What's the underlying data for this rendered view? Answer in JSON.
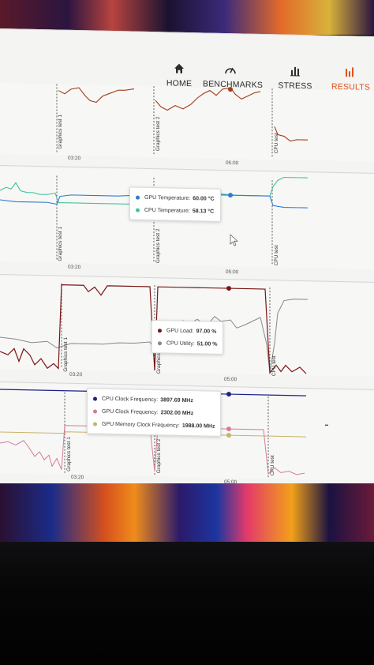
{
  "nav": {
    "items": [
      {
        "label": "HOME",
        "icon": "home-icon",
        "active": false
      },
      {
        "label": "BENCHMARKS",
        "icon": "gauge-icon",
        "active": false
      },
      {
        "label": "STRESS TESTS",
        "icon": "bars-icon",
        "active": false
      },
      {
        "label": "RESULTS",
        "icon": "results-icon",
        "active": true
      }
    ],
    "active_color": "#e0531f"
  },
  "segments": {
    "graphics_test_1": "Graphics test 1",
    "graphics_test_2": "Graphics test 2",
    "cpu_test": "CPU test"
  },
  "time_ticks": [
    "03:20",
    "05:00"
  ],
  "tooltips": {
    "temperature": [
      {
        "label": "GPU Temperature:",
        "value": "60.00 °C",
        "color": "#2f7ad0"
      },
      {
        "label": "CPU Temperature:",
        "value": "58.13 °C",
        "color": "#3fc49a"
      }
    ],
    "load": [
      {
        "label": "GPU Load:",
        "value": "97.00 %",
        "color": "#7a1414"
      },
      {
        "label": "CPU Utility:",
        "value": "51.00 %",
        "color": "#888888"
      }
    ],
    "clock": [
      {
        "label": "CPU Clock Frequency:",
        "value": "3897.69 MHz",
        "color": "#1e1e8a"
      },
      {
        "label": "GPU Clock Frequency:",
        "value": "2302.00 MHz",
        "color": "#d77a9a"
      },
      {
        "label": "GPU Memory Clock Frequency:",
        "value": "1988.00 MHz",
        "color": "#c8b26a"
      }
    ]
  }
}
